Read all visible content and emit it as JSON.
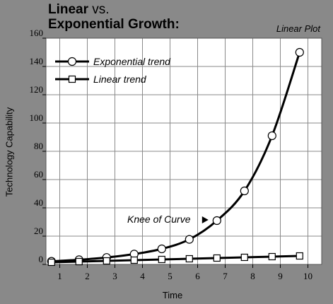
{
  "title_part1": "Linear",
  "title_part2": " vs.",
  "title_line2": "Exponential Growth:",
  "plot_note": "Linear Plot",
  "chart_data": {
    "type": "line",
    "title": "Linear vs. Exponential Growth:",
    "xlabel": "Time",
    "ylabel": "Technology Capability",
    "xlim": [
      0.5,
      10.5
    ],
    "ylim": [
      0,
      160
    ],
    "xticks": [
      1,
      2,
      3,
      4,
      5,
      6,
      7,
      8,
      9,
      10
    ],
    "yticks": [
      0,
      20,
      40,
      60,
      80,
      100,
      120,
      140,
      160
    ],
    "grid": true,
    "legend_position": "top-left",
    "series": [
      {
        "name": "Exponential trend",
        "marker": "circle",
        "x": [
          0.7,
          1.7,
          2.7,
          3.7,
          4.7,
          5.7,
          6.7,
          7.7,
          8.7,
          9.7
        ],
        "y": [
          2.2,
          3.3,
          4.9,
          7.3,
          11,
          17.7,
          31,
          52,
          91,
          150
        ]
      },
      {
        "name": "Linear trend",
        "marker": "square",
        "x": [
          0.7,
          1.7,
          2.7,
          3.7,
          4.7,
          5.7,
          6.7,
          7.7,
          8.7,
          9.7
        ],
        "y": [
          1.5,
          2,
          2.5,
          3,
          3.5,
          4,
          4.5,
          5,
          5.5,
          6
        ]
      }
    ],
    "annotations": [
      {
        "text": "Knee of Curve",
        "arrow_to_x": 6.7,
        "arrow_to_y": 31
      }
    ]
  }
}
